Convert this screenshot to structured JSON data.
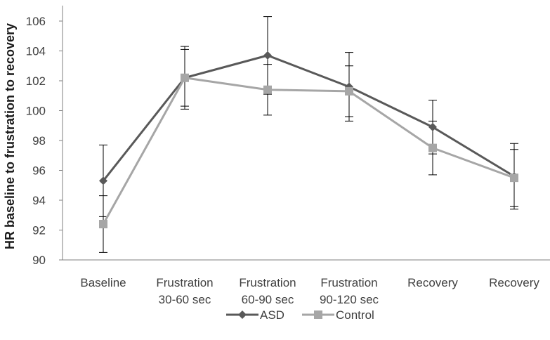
{
  "chart_data": {
    "type": "line",
    "title": "",
    "xlabel": "",
    "ylabel": "HR baseline to frustration to recovery",
    "ylim": [
      90,
      106
    ],
    "yticks": [
      90,
      92,
      94,
      96,
      98,
      100,
      102,
      104,
      106
    ],
    "grid": false,
    "legend": "bottom",
    "categories": [
      [
        "Baseline"
      ],
      [
        "Frustration",
        "30-60 sec"
      ],
      [
        "Frustration",
        "60-90 sec"
      ],
      [
        "Frustration",
        "90-120 sec"
      ],
      [
        "Recovery"
      ],
      [
        "Recovery"
      ]
    ],
    "series": [
      {
        "name": "ASD",
        "color": "#595959",
        "marker": "diamond",
        "values": [
          95.3,
          102.2,
          103.7,
          101.6,
          98.9,
          95.6
        ],
        "error": [
          2.4,
          2.1,
          2.6,
          2.3,
          1.8,
          2.2
        ]
      },
      {
        "name": "Control",
        "color": "#a6a6a6",
        "marker": "square",
        "values": [
          92.4,
          102.2,
          101.4,
          101.3,
          97.5,
          95.5
        ],
        "error": [
          1.9,
          1.9,
          1.7,
          1.7,
          1.8,
          1.9
        ]
      }
    ]
  }
}
